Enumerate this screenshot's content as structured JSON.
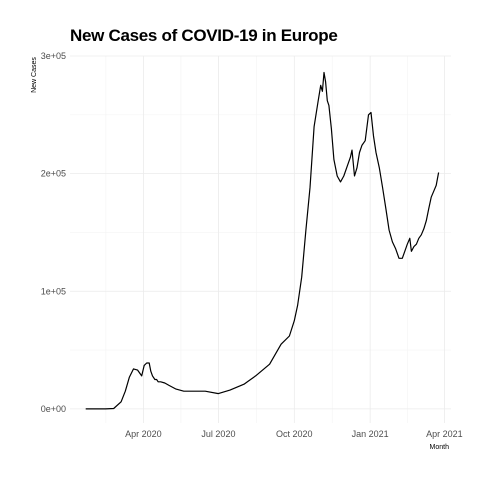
{
  "chart_data": {
    "type": "line",
    "title": "New Cases of COVID-19 in Europe",
    "xlabel": "Month",
    "ylabel": "New Cases",
    "x_ticks": [
      {
        "date": "2020-04-01",
        "label": "Apr 2020"
      },
      {
        "date": "2020-07-01",
        "label": "Jul 2020"
      },
      {
        "date": "2020-10-01",
        "label": "Oct 2020"
      },
      {
        "date": "2021-01-01",
        "label": "Jan 2021"
      },
      {
        "date": "2021-04-01",
        "label": "Apr 2021"
      }
    ],
    "y_ticks": [
      {
        "value": 0,
        "label": "0e+00"
      },
      {
        "value": 100000,
        "label": "1e+05"
      },
      {
        "value": 200000,
        "label": "2e+05"
      },
      {
        "value": 300000,
        "label": "3e+05"
      }
    ],
    "xlim": [
      "2020-01-03",
      "2021-04-09"
    ],
    "ylim": [
      -12000,
      300000
    ],
    "grid": true,
    "colors": {
      "line": "#000000",
      "grid": "#ebebeb",
      "grid_minor": "#f4f4f4"
    },
    "series": [
      {
        "x": [
          "2020-01-22",
          "2020-02-01",
          "2020-02-15",
          "2020-02-25",
          "2020-03-05",
          "2020-03-10",
          "2020-03-15",
          "2020-03-20",
          "2020-03-25",
          "2020-03-30",
          "2020-04-02",
          "2020-04-05",
          "2020-04-08",
          "2020-04-10",
          "2020-04-12",
          "2020-04-15",
          "2020-04-17",
          "2020-04-19",
          "2020-04-22",
          "2020-04-27",
          "2020-05-02",
          "2020-05-10",
          "2020-05-20",
          "2020-06-01",
          "2020-06-15",
          "2020-07-01",
          "2020-07-15",
          "2020-08-01",
          "2020-08-15",
          "2020-09-01",
          "2020-09-15",
          "2020-09-25",
          "2020-10-01",
          "2020-10-05",
          "2020-10-10",
          "2020-10-15",
          "2020-10-20",
          "2020-10-25",
          "2020-10-30",
          "2020-11-02",
          "2020-11-04",
          "2020-11-06",
          "2020-11-08",
          "2020-11-10",
          "2020-11-12",
          "2020-11-15",
          "2020-11-18",
          "2020-11-22",
          "2020-11-26",
          "2020-11-30",
          "2020-12-04",
          "2020-12-08",
          "2020-12-10",
          "2020-12-13",
          "2020-12-16",
          "2020-12-19",
          "2020-12-22",
          "2020-12-26",
          "2020-12-30",
          "2021-01-02",
          "2021-01-05",
          "2021-01-08",
          "2021-01-12",
          "2021-01-16",
          "2021-01-20",
          "2021-01-24",
          "2021-01-28",
          "2021-02-01",
          "2021-02-05",
          "2021-02-09",
          "2021-02-12",
          "2021-02-15",
          "2021-02-18",
          "2021-02-20",
          "2021-02-23",
          "2021-02-26",
          "2021-03-01",
          "2021-03-04",
          "2021-03-07",
          "2021-03-10",
          "2021-03-13",
          "2021-03-16",
          "2021-03-19",
          "2021-03-22",
          "2021-03-25"
        ],
        "values": [
          0,
          0,
          0,
          300,
          6000,
          15000,
          27000,
          34000,
          33000,
          28000,
          37000,
          39000,
          39000,
          32000,
          28000,
          25000,
          25000,
          23000,
          23000,
          22000,
          20000,
          17000,
          15000,
          15000,
          15000,
          13000,
          16000,
          21000,
          28000,
          38000,
          55000,
          62000,
          75000,
          88000,
          112000,
          152000,
          188000,
          240000,
          262000,
          275000,
          270000,
          286000,
          278000,
          262000,
          258000,
          238000,
          212000,
          198000,
          193000,
          198000,
          206000,
          214000,
          220000,
          198000,
          205000,
          218000,
          224000,
          228000,
          250000,
          252000,
          232000,
          218000,
          205000,
          188000,
          170000,
          152000,
          142000,
          136000,
          128000,
          128000,
          134000,
          140000,
          145000,
          134000,
          138000,
          140000,
          145000,
          148000,
          153000,
          160000,
          170000,
          180000,
          185000,
          190000,
          201000
        ]
      }
    ]
  }
}
